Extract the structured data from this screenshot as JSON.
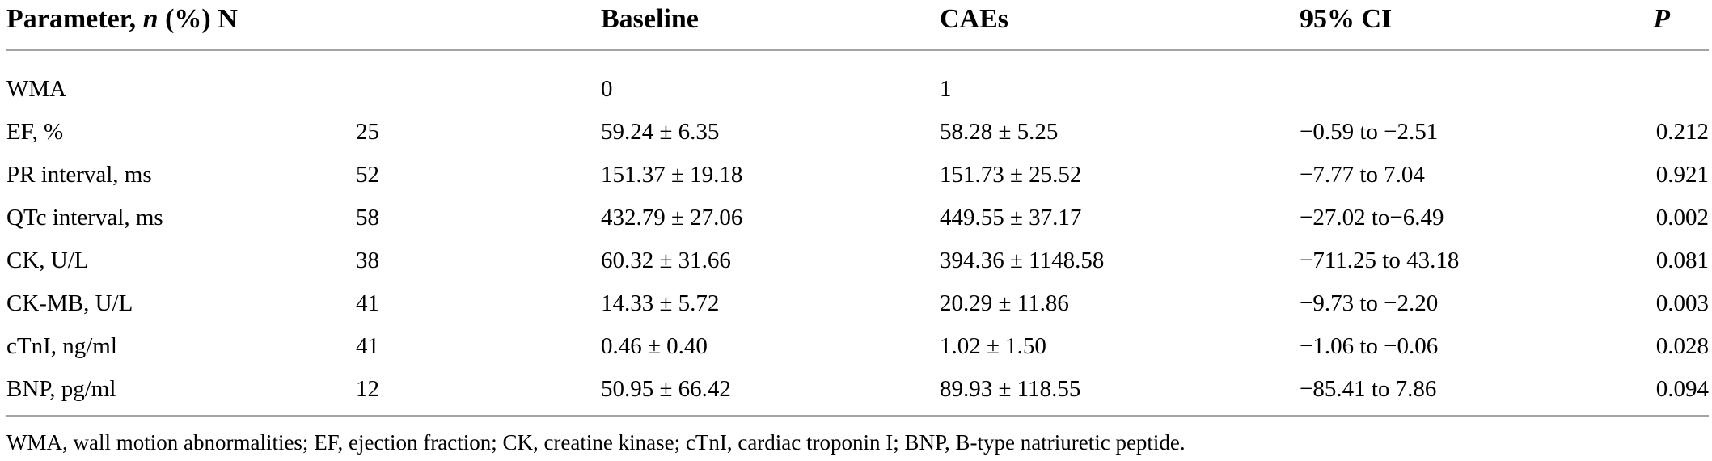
{
  "table": {
    "header": {
      "parameter_pre": "Parameter, ",
      "parameter_italic": "n",
      "parameter_post": " (%) N",
      "baseline": "Baseline",
      "caes": "CAEs",
      "ci": "95% CI",
      "p": "P"
    },
    "rows": [
      {
        "parameter": "WMA",
        "n": "",
        "baseline": "0",
        "caes": "1",
        "ci": "",
        "p": ""
      },
      {
        "parameter": "EF, %",
        "n": "25",
        "baseline": "59.24 ± 6.35",
        "caes": "58.28 ± 5.25",
        "ci": "−0.59 to −2.51",
        "p": "0.212"
      },
      {
        "parameter": "PR interval, ms",
        "n": "52",
        "baseline": "151.37 ± 19.18",
        "caes": "151.73 ± 25.52",
        "ci": "−7.77 to 7.04",
        "p": "0.921"
      },
      {
        "parameter": "QTc interval, ms",
        "n": "58",
        "baseline": "432.79 ± 27.06",
        "caes": "449.55 ± 37.17",
        "ci": "−27.02 to−6.49",
        "p": "0.002"
      },
      {
        "parameter": "CK, U/L",
        "n": "38",
        "baseline": "60.32 ± 31.66",
        "caes": "394.36 ± 1148.58",
        "ci": "−711.25 to 43.18",
        "p": "0.081"
      },
      {
        "parameter": "CK-MB, U/L",
        "n": "41",
        "baseline": "14.33 ± 5.72",
        "caes": "20.29 ± 11.86",
        "ci": "−9.73 to −2.20",
        "p": "0.003"
      },
      {
        "parameter": "cTnI, ng/ml",
        "n": "41",
        "baseline": "0.46 ± 0.40",
        "caes": "1.02 ± 1.50",
        "ci": "−1.06 to −0.06",
        "p": "0.028"
      },
      {
        "parameter": "BNP, pg/ml",
        "n": "12",
        "baseline": "50.95 ± 66.42",
        "caes": "89.93 ± 118.55",
        "ci": "−85.41 to 7.86",
        "p": "0.094"
      }
    ],
    "footnote": "WMA, wall motion abnormalities; EF, ejection fraction; CK, creatine kinase; cTnI, cardiac troponin I; BNP, B-type natriuretic peptide."
  }
}
